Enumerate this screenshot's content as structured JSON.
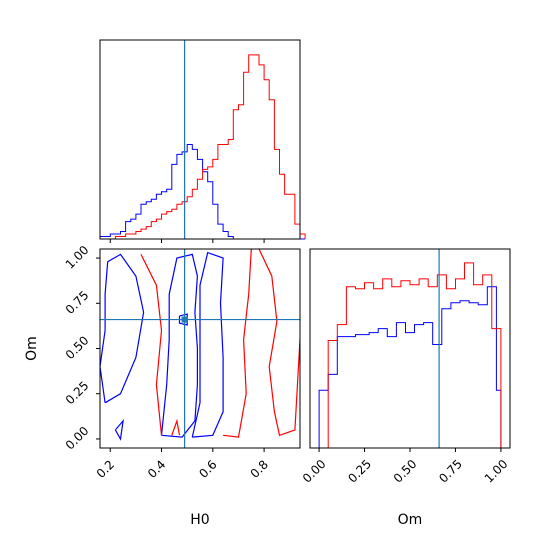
{
  "chart_data": {
    "type": "corner",
    "params": [
      "H0",
      "Om"
    ],
    "truth": {
      "H0": 0.49,
      "Om": 0.66
    },
    "colors": {
      "blue": "#0000ff",
      "red": "#ff0000",
      "truth": "#1f77b4"
    },
    "hist_H0": {
      "bin_edges": [
        0.16,
        0.18,
        0.2,
        0.22,
        0.24,
        0.26,
        0.28,
        0.3,
        0.32,
        0.34,
        0.36,
        0.38,
        0.4,
        0.42,
        0.44,
        0.46,
        0.48,
        0.5,
        0.52,
        0.54,
        0.56,
        0.58,
        0.6,
        0.62,
        0.64,
        0.66,
        0.68,
        0.7,
        0.72,
        0.74,
        0.76,
        0.78,
        0.8,
        0.82,
        0.84,
        0.86,
        0.88,
        0.9,
        0.92,
        0.94,
        0.96
      ],
      "series": [
        {
          "color": "blue",
          "counts": [
            0.5,
            0.5,
            1,
            1,
            1.5,
            3.5,
            4,
            5,
            7,
            7.5,
            8,
            9,
            9.5,
            10,
            15,
            17,
            17.5,
            19,
            18,
            16,
            13.5,
            11.5,
            7,
            3,
            1.5,
            0.5,
            0,
            0,
            0,
            0,
            0,
            0,
            0,
            0,
            0,
            0,
            0,
            0,
            0,
            0
          ]
        },
        {
          "color": "red",
          "counts": [
            0,
            0,
            0,
            0.5,
            0.5,
            1,
            1,
            1.5,
            2,
            2.5,
            3.5,
            4,
            5,
            5.5,
            6,
            7,
            7.5,
            8.5,
            10,
            12,
            14,
            14.5,
            16,
            19,
            19,
            20,
            26,
            27,
            33.5,
            37,
            37,
            35,
            32,
            28,
            18,
            13,
            9,
            9,
            3,
            1
          ]
        }
      ]
    },
    "hist_Om": {
      "bin_edges": [
        0.0,
        0.025,
        0.05,
        0.075,
        0.1,
        0.125,
        0.15,
        0.175,
        0.2,
        0.225,
        0.25,
        0.275,
        0.3,
        0.325,
        0.35,
        0.375,
        0.4,
        0.425,
        0.45,
        0.475,
        0.5,
        0.525,
        0.55,
        0.575,
        0.6,
        0.625,
        0.65,
        0.675,
        0.7,
        0.725,
        0.75,
        0.775,
        0.8,
        0.825,
        0.85,
        0.875,
        0.9,
        0.925,
        0.95,
        0.975,
        1.0
      ],
      "series": [
        {
          "color": "blue",
          "counts": [
            29,
            29,
            37,
            37,
            56,
            56,
            56,
            56,
            57,
            57,
            57,
            58,
            58,
            60,
            60,
            56,
            56,
            63,
            63,
            58,
            58,
            62,
            62,
            63,
            63,
            52,
            52,
            70,
            70,
            73,
            73,
            74,
            74,
            73,
            73,
            72,
            72,
            81,
            81,
            29
          ]
        },
        {
          "color": "red",
          "counts": [
            0,
            0,
            54,
            54,
            62,
            62,
            81,
            81,
            80,
            80,
            83,
            83,
            80,
            80,
            85,
            85,
            81,
            81,
            84,
            84,
            82,
            82,
            85,
            85,
            81,
            81,
            87,
            87,
            80,
            80,
            85,
            85,
            93,
            93,
            82,
            82,
            87,
            87,
            60,
            60
          ]
        }
      ]
    },
    "contours": {
      "blue": [
        [
          [
            0.18,
            0.2
          ],
          [
            0.24,
            0.25
          ],
          [
            0.3,
            0.45
          ],
          [
            0.33,
            0.7
          ],
          [
            0.3,
            0.9
          ],
          [
            0.24,
            1.02
          ],
          [
            0.19,
            0.98
          ],
          [
            0.18,
            0.8
          ],
          [
            0.18,
            0.6
          ],
          [
            0.16,
            0.4
          ],
          [
            0.18,
            0.2
          ]
        ],
        [
          [
            0.4,
            0.02
          ],
          [
            0.48,
            0.01
          ],
          [
            0.53,
            0.1
          ],
          [
            0.54,
            0.3
          ],
          [
            0.54,
            0.5
          ],
          [
            0.53,
            0.7
          ],
          [
            0.54,
            0.9
          ],
          [
            0.52,
            1.02
          ],
          [
            0.46,
            1.0
          ],
          [
            0.43,
            0.8
          ],
          [
            0.43,
            0.55
          ],
          [
            0.42,
            0.3
          ],
          [
            0.4,
            0.02
          ]
        ],
        [
          [
            0.52,
            0.01
          ],
          [
            0.6,
            0.02
          ],
          [
            0.64,
            0.15
          ],
          [
            0.64,
            0.45
          ],
          [
            0.63,
            0.75
          ],
          [
            0.64,
            1.0
          ],
          [
            0.58,
            1.03
          ],
          [
            0.55,
            0.85
          ],
          [
            0.55,
            0.5
          ],
          [
            0.55,
            0.2
          ],
          [
            0.52,
            0.01
          ]
        ],
        [
          [
            0.47,
            0.68
          ],
          [
            0.5,
            0.69
          ],
          [
            0.5,
            0.63
          ],
          [
            0.47,
            0.64
          ],
          [
            0.47,
            0.68
          ]
        ],
        [
          [
            0.22,
            0.05
          ],
          [
            0.25,
            0.1
          ],
          [
            0.24,
            0.0
          ],
          [
            0.22,
            0.05
          ]
        ]
      ],
      "red": [
        [
          [
            0.32,
            1.02
          ],
          [
            0.38,
            0.85
          ],
          [
            0.4,
            0.6
          ],
          [
            0.38,
            0.3
          ],
          [
            0.4,
            0.02
          ]
        ],
        [
          [
            0.64,
            0.02
          ],
          [
            0.7,
            0.01
          ],
          [
            0.73,
            0.25
          ],
          [
            0.72,
            0.55
          ],
          [
            0.74,
            0.8
          ],
          [
            0.75,
            1.05
          ]
        ],
        [
          [
            0.78,
            1.05
          ],
          [
            0.83,
            0.9
          ],
          [
            0.85,
            0.65
          ],
          [
            0.82,
            0.4
          ],
          [
            0.84,
            0.15
          ],
          [
            0.86,
            0.02
          ],
          [
            0.92,
            0.05
          ],
          [
            0.94,
            0.55
          ],
          [
            0.95,
            1.05
          ]
        ],
        [
          [
            0.44,
            0.02
          ],
          [
            0.46,
            0.1
          ],
          [
            0.47,
            0.02
          ]
        ]
      ]
    },
    "x_H0": {
      "label": "H0",
      "range": [
        0.16,
        0.94
      ],
      "ticks": [
        "0.2",
        "0.4",
        "0.6",
        "0.8"
      ],
      "tick_values": [
        0.2,
        0.4,
        0.6,
        0.8
      ]
    },
    "x_Om": {
      "label": "Om",
      "range": [
        -0.05,
        1.05
      ],
      "ticks": [
        "0.00",
        "0.25",
        "0.50",
        "0.75",
        "1.00"
      ],
      "tick_values": [
        0.0,
        0.25,
        0.5,
        0.75,
        1.0
      ]
    },
    "y_Om": {
      "label": "Om",
      "range": [
        -0.05,
        1.05
      ],
      "ticks": [
        "0.00",
        "0.25",
        "0.50",
        "0.75",
        "1.00"
      ],
      "tick_values": [
        0.0,
        0.25,
        0.5,
        0.75,
        1.0
      ]
    }
  }
}
